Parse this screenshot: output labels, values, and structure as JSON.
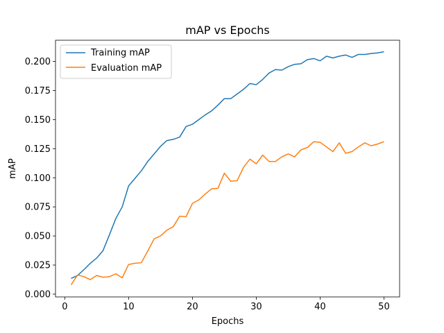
{
  "chart_data": {
    "type": "line",
    "title": "mAP vs Epochs",
    "xlabel": "Epochs",
    "ylabel": "mAP",
    "xlim": [
      -1.45,
      52.45
    ],
    "ylim": [
      -0.0024,
      0.2182
    ],
    "xticks": [
      0,
      10,
      20,
      30,
      40,
      50
    ],
    "yticks": [
      0.0,
      0.025,
      0.05,
      0.075,
      0.1,
      0.125,
      0.15,
      0.175,
      0.2
    ],
    "ytick_labels": [
      "0.000",
      "0.025",
      "0.050",
      "0.075",
      "0.100",
      "0.125",
      "0.150",
      "0.175",
      "0.200"
    ],
    "grid": false,
    "legend_position": "top-left",
    "x": [
      1,
      2,
      3,
      4,
      5,
      6,
      7,
      8,
      9,
      10,
      11,
      12,
      13,
      14,
      15,
      16,
      17,
      18,
      19,
      20,
      21,
      22,
      23,
      24,
      25,
      26,
      27,
      28,
      29,
      30,
      31,
      32,
      33,
      34,
      35,
      36,
      37,
      38,
      39,
      40,
      41,
      42,
      43,
      44,
      45,
      46,
      47,
      48,
      49,
      50
    ],
    "series": [
      {
        "name": "Training mAP",
        "color": "#1f77b4",
        "values": [
          0.0135,
          0.016,
          0.021,
          0.0265,
          0.031,
          0.0375,
          0.051,
          0.065,
          0.075,
          0.093,
          0.0995,
          0.106,
          0.114,
          0.1205,
          0.127,
          0.132,
          0.133,
          0.135,
          0.144,
          0.146,
          0.15,
          0.154,
          0.1575,
          0.1625,
          0.168,
          0.168,
          0.172,
          0.176,
          0.181,
          0.18,
          0.1845,
          0.19,
          0.193,
          0.1925,
          0.1955,
          0.1975,
          0.198,
          0.2015,
          0.2025,
          0.2005,
          0.2045,
          0.203,
          0.2045,
          0.2055,
          0.2035,
          0.206,
          0.206,
          0.2068,
          0.2073,
          0.2083
        ]
      },
      {
        "name": "Evaluation mAP",
        "color": "#ff7f0e",
        "values": [
          0.008,
          0.0165,
          0.015,
          0.0125,
          0.016,
          0.0145,
          0.015,
          0.0175,
          0.014,
          0.0255,
          0.0265,
          0.027,
          0.037,
          0.0475,
          0.05,
          0.055,
          0.058,
          0.067,
          0.0665,
          0.078,
          0.081,
          0.086,
          0.0905,
          0.091,
          0.104,
          0.097,
          0.0975,
          0.109,
          0.116,
          0.112,
          0.1195,
          0.114,
          0.114,
          0.118,
          0.1205,
          0.118,
          0.124,
          0.126,
          0.131,
          0.1305,
          0.1265,
          0.1225,
          0.13,
          0.121,
          0.1225,
          0.1265,
          0.13,
          0.1275,
          0.129,
          0.131
        ]
      }
    ]
  }
}
